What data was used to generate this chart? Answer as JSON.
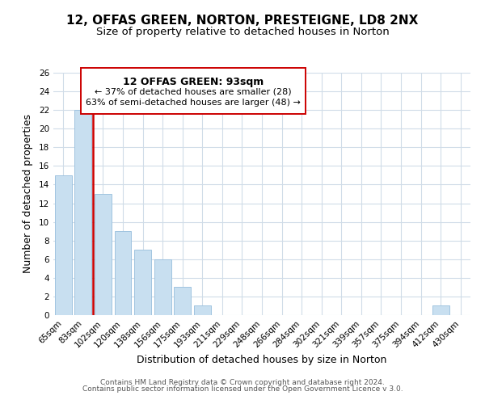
{
  "title": "12, OFFAS GREEN, NORTON, PRESTEIGNE, LD8 2NX",
  "subtitle": "Size of property relative to detached houses in Norton",
  "xlabel": "Distribution of detached houses by size in Norton",
  "ylabel": "Number of detached properties",
  "categories": [
    "65sqm",
    "83sqm",
    "102sqm",
    "120sqm",
    "138sqm",
    "156sqm",
    "175sqm",
    "193sqm",
    "211sqm",
    "229sqm",
    "248sqm",
    "266sqm",
    "284sqm",
    "302sqm",
    "321sqm",
    "339sqm",
    "357sqm",
    "375sqm",
    "394sqm",
    "412sqm",
    "430sqm"
  ],
  "values": [
    15,
    22,
    13,
    9,
    7,
    6,
    3,
    1,
    0,
    0,
    0,
    0,
    0,
    0,
    0,
    0,
    0,
    0,
    0,
    1,
    0
  ],
  "bar_color": "#c8dff0",
  "bar_edge_color": "#a0c4e0",
  "vline_color": "#cc0000",
  "ylim": [
    0,
    26
  ],
  "yticks": [
    0,
    2,
    4,
    6,
    8,
    10,
    12,
    14,
    16,
    18,
    20,
    22,
    24,
    26
  ],
  "annotation_title": "12 OFFAS GREEN: 93sqm",
  "annotation_line1": "← 37% of detached houses are smaller (28)",
  "annotation_line2": "63% of semi-detached houses are larger (48) →",
  "annotation_box_color": "#ffffff",
  "annotation_box_edge": "#cc0000",
  "footer_line1": "Contains HM Land Registry data © Crown copyright and database right 2024.",
  "footer_line2": "Contains public sector information licensed under the Open Government Licence v 3.0.",
  "background_color": "#ffffff",
  "grid_color": "#d0dce8",
  "title_fontsize": 11,
  "subtitle_fontsize": 9.5,
  "axis_label_fontsize": 9,
  "tick_fontsize": 7.5,
  "annotation_title_fontsize": 9,
  "annotation_text_fontsize": 8,
  "footer_fontsize": 6.5
}
